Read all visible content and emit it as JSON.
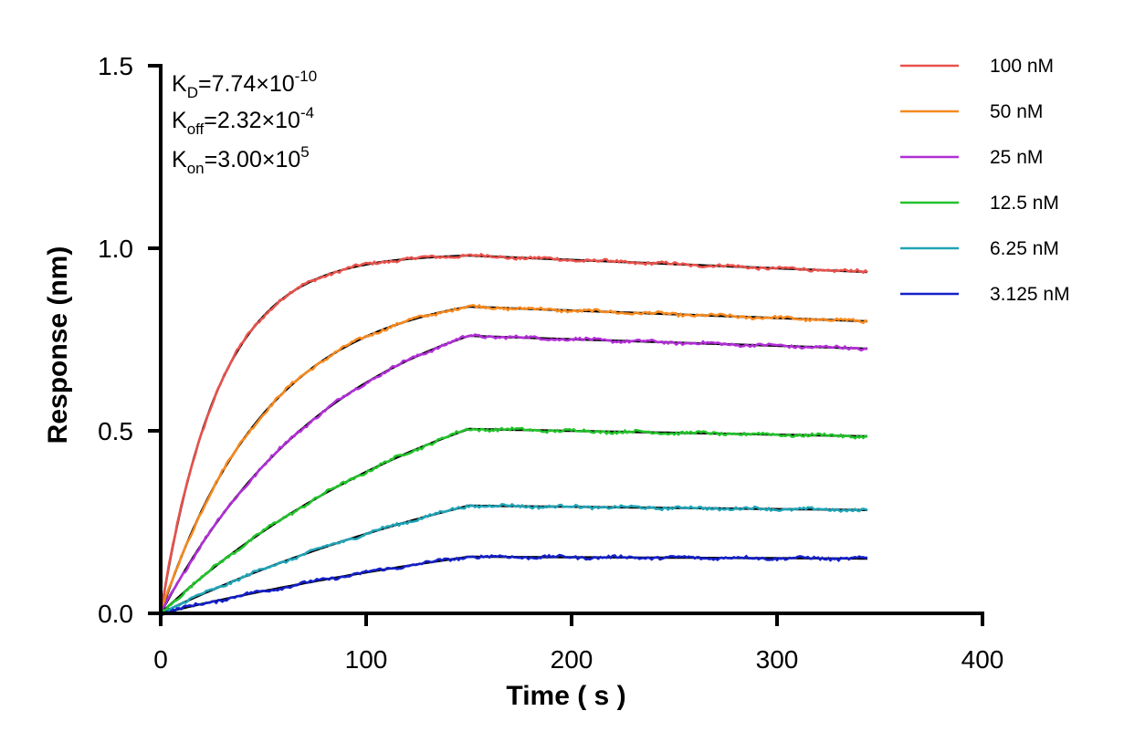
{
  "chart_data": {
    "type": "line",
    "xlabel": "Time ( s )",
    "ylabel": "Response (nm)",
    "xlim": [
      0,
      400
    ],
    "ylim": [
      0,
      1.5
    ],
    "x_ticks": [
      "0",
      "100",
      "200",
      "300",
      "400"
    ],
    "y_ticks": [
      "0.0",
      "0.5",
      "1.0",
      "1.5"
    ],
    "grid": false,
    "legend_position": "top-right",
    "association_end": 150,
    "time_end": 344,
    "kinetics": {
      "kd": {
        "label": "K",
        "sub": "D",
        "value": "=7.74×10",
        "exp": "-10"
      },
      "koff": {
        "label": "K",
        "sub": "off",
        "value": "=2.32×10",
        "exp": "-4"
      },
      "kon": {
        "label": "K",
        "sub": "on",
        "value": "=3.00×10",
        "exp": "5"
      }
    },
    "series": [
      {
        "name": "100 nM",
        "color": "#e8524c",
        "plateau": 0.98,
        "end": 0.935
      },
      {
        "name": "50 nM",
        "color": "#f5891f",
        "plateau": 0.84,
        "end": 0.8
      },
      {
        "name": "25 nM",
        "color": "#b12fd6",
        "plateau": 0.76,
        "end": 0.725
      },
      {
        "name": "12.5 nM",
        "color": "#22c22a",
        "plateau": 0.505,
        "end": 0.485
      },
      {
        "name": "6.25 nM",
        "color": "#1fa3b5",
        "plateau": 0.295,
        "end": 0.283
      },
      {
        "name": "3.125 nM",
        "color": "#1420c8",
        "plateau": 0.155,
        "end": 0.15
      }
    ],
    "fit_color": "#000000"
  }
}
